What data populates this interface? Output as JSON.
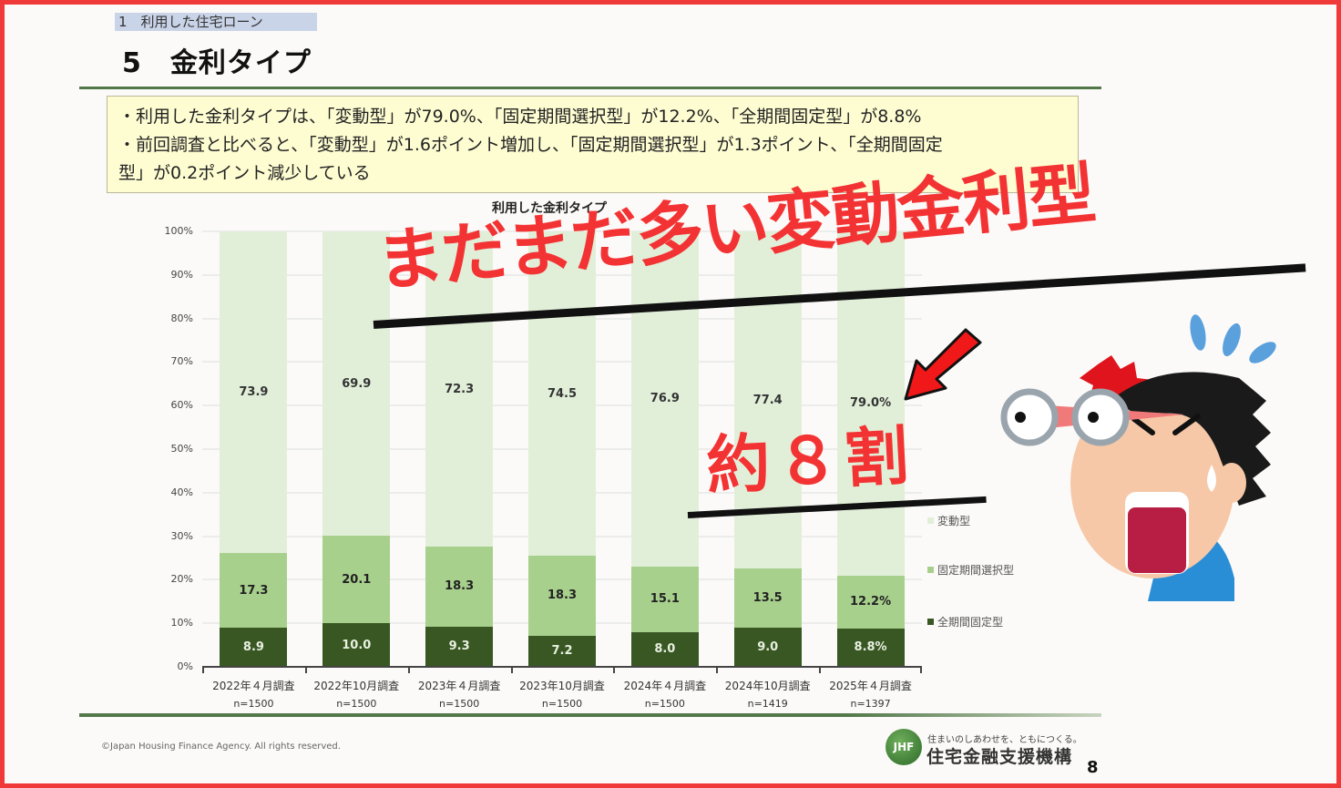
{
  "header": {
    "section_tag": "1　利用した住宅ローン",
    "page_title": "5　金利タイプ"
  },
  "summary": {
    "lines": [
      "・利用した金利タイプは、「変動型」が79.0%、「固定期間選択型」が12.2%、「全期間固定型」が8.8%",
      "・前回調査と比べると、「変動型」が1.6ポイント増加し、「固定期間選択型」が1.3ポイント、「全期間固定",
      "型」が0.2ポイント減少している"
    ]
  },
  "colors": {
    "variable": "#e1efd9",
    "fixed_period_select": "#a8d08d",
    "fully_fixed": "#385723",
    "overlay_red": "#f33333",
    "frame_red": "#f03a3a"
  },
  "chart_data": {
    "type": "bar",
    "stacked": true,
    "title": "利用した金利タイプ",
    "xlabel": "",
    "ylabel": "",
    "ylim": [
      0,
      100
    ],
    "yticks": [
      "0%",
      "10%",
      "20%",
      "30%",
      "40%",
      "50%",
      "60%",
      "70%",
      "80%",
      "90%",
      "100%"
    ],
    "grid": true,
    "legend_position": "right",
    "categories": [
      "2022年４月調査",
      "2022年10月調査",
      "2023年４月調査",
      "2023年10月調査",
      "2024年４月調査",
      "2024年10月調査",
      "2025年４月調査"
    ],
    "sample_sizes": [
      "n=1500",
      "n=1500",
      "n=1500",
      "n=1500",
      "n=1500",
      "n=1419",
      "n=1397"
    ],
    "series": [
      {
        "name": "全期間固定型",
        "color": "#385723",
        "values": [
          8.9,
          10.0,
          9.3,
          7.2,
          8.0,
          9.0,
          8.8
        ],
        "labels": [
          "8.9",
          "10.0",
          "9.3",
          "7.2",
          "8.0",
          "9.0",
          "8.8%"
        ]
      },
      {
        "name": "固定期間選択型",
        "color": "#a8d08d",
        "values": [
          17.3,
          20.1,
          18.3,
          18.3,
          15.1,
          13.5,
          12.2
        ],
        "labels": [
          "17.3",
          "20.1",
          "18.3",
          "18.3",
          "15.1",
          "13.5",
          "12.2%"
        ]
      },
      {
        "name": "変動型",
        "color": "#e1efd9",
        "values": [
          73.9,
          69.9,
          72.3,
          74.5,
          76.9,
          77.4,
          79.0
        ],
        "labels": [
          "73.9",
          "69.9",
          "72.3",
          "74.5",
          "76.9",
          "77.4",
          "79.0%"
        ]
      }
    ],
    "legend": [
      "変動型",
      "固定期間選択型",
      "全期間固定型"
    ]
  },
  "overlay": {
    "headline": "まだまだ多い変動金利型",
    "sub": "約８割"
  },
  "footer": {
    "copyright": "©Japan Housing Finance Agency. All rights reserved.",
    "logo_text": "JHF",
    "tagline": "住まいのしあわせを、ともにつくる。",
    "org_name": "住宅金融支援機構",
    "page_number": "8"
  }
}
